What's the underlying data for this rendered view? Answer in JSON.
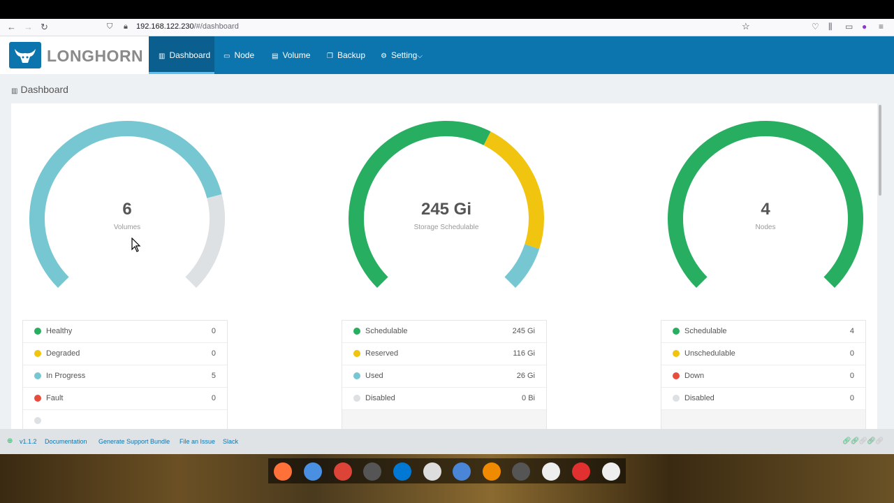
{
  "browser": {
    "url_host": "192.168.122.230",
    "url_path": "/#/dashboard"
  },
  "brand": {
    "name": "LONGHORN"
  },
  "nav": [
    {
      "label": "Dashboard",
      "icon": "chart-icon"
    },
    {
      "label": "Node",
      "icon": "laptop-icon"
    },
    {
      "label": "Volume",
      "icon": "list-icon"
    },
    {
      "label": "Backup",
      "icon": "copy-icon"
    },
    {
      "label": "Setting",
      "icon": "gear-icon"
    }
  ],
  "breadcrumb": "Dashboard",
  "gauges": [
    {
      "value": "6",
      "label": "Volumes",
      "segments": [
        {
          "frac": 0.78,
          "color": "#77c7d3"
        },
        {
          "frac": 0.22,
          "color": "#dde1e4"
        }
      ]
    },
    {
      "value": "245 Gi",
      "label": "Storage Schedulable",
      "segments": [
        {
          "frac": 0.6,
          "color": "#27ae60"
        },
        {
          "frac": 0.3,
          "color": "#f1c40f"
        },
        {
          "frac": 0.1,
          "color": "#77c7d3"
        }
      ]
    },
    {
      "value": "4",
      "label": "Nodes",
      "segments": [
        {
          "frac": 1.0,
          "color": "#27ae60"
        }
      ]
    }
  ],
  "legends": [
    {
      "rows": [
        {
          "label": "Healthy",
          "value": "0",
          "color": "#27ae60"
        },
        {
          "label": "Degraded",
          "value": "0",
          "color": "#f1c40f"
        },
        {
          "label": "In Progress",
          "value": "5",
          "color": "#77c7d3"
        },
        {
          "label": "Fault",
          "value": "0",
          "color": "#e74c3c"
        }
      ]
    },
    {
      "rows": [
        {
          "label": "Schedulable",
          "value": "245 Gi",
          "color": "#27ae60"
        },
        {
          "label": "Reserved",
          "value": "116 Gi",
          "color": "#f1c40f"
        },
        {
          "label": "Used",
          "value": "26 Gi",
          "color": "#77c7d3"
        },
        {
          "label": "Disabled",
          "value": "0 Bi",
          "color": "#dde1e4"
        }
      ]
    },
    {
      "rows": [
        {
          "label": "Schedulable",
          "value": "4",
          "color": "#27ae60"
        },
        {
          "label": "Unschedulable",
          "value": "0",
          "color": "#f1c40f"
        },
        {
          "label": "Down",
          "value": "0",
          "color": "#e74c3c"
        },
        {
          "label": "Disabled",
          "value": "0",
          "color": "#dde1e4"
        }
      ]
    }
  ],
  "footer": {
    "version": "v1.1.2",
    "links": [
      "Documentation",
      "Generate Support Bundle",
      "File an Issue",
      "Slack"
    ]
  },
  "dock": [
    {
      "name": "firefox-icon",
      "color": "#ff7139"
    },
    {
      "name": "files-icon",
      "color": "#4a90e2"
    },
    {
      "name": "chrome-icon",
      "color": "#db4437"
    },
    {
      "name": "terminal-icon",
      "color": "#555555"
    },
    {
      "name": "vscode-icon",
      "color": "#0078d4"
    },
    {
      "name": "obs-icon",
      "color": "#dddddd"
    },
    {
      "name": "thunderbird-icon",
      "color": "#4a86d8"
    },
    {
      "name": "vlc-icon",
      "color": "#f08a00"
    },
    {
      "name": "terminal-2-icon",
      "color": "#555555"
    },
    {
      "name": "command-icon",
      "color": "#eeeeee"
    },
    {
      "name": "anydesk-icon",
      "color": "#e03030"
    },
    {
      "name": "trash-icon",
      "color": "#eeeeee"
    }
  ]
}
